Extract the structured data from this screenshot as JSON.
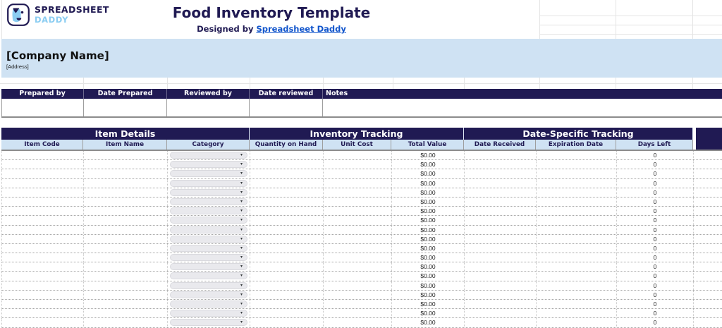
{
  "brand": {
    "logo_icon": "dog-face-icon",
    "name_top": "SPREADSHEET",
    "name_bottom": "DADDY"
  },
  "header": {
    "title": "Food Inventory Template",
    "byline_prefix": "Designed by ",
    "byline_link": "Spreadsheet Daddy"
  },
  "company": {
    "name": "[Company Name]",
    "address": "[Address]"
  },
  "meta_table": {
    "headers": [
      "Prepared by",
      "Date Prepared",
      "Reviewed by",
      "Date reviewed",
      "Notes"
    ]
  },
  "inventory_table": {
    "group_headers": [
      "Item Details",
      "Inventory Tracking",
      "Date-Specific Tracking"
    ],
    "column_headers": [
      "Item Code",
      "Item Name",
      "Category",
      "Quantity on Hand",
      "Unit Cost",
      "Total Value",
      "Date Received",
      "Expiration Date",
      "Days Left"
    ],
    "row_count": 20,
    "row_defaults": {
      "item_code": "",
      "item_name": "",
      "category": "",
      "quantity_on_hand": "",
      "unit_cost": "",
      "total_value": "$0.00",
      "date_received": "",
      "expiration_date": "",
      "days_left": "0"
    },
    "category_dropdown_icon": "chevron-down-icon"
  },
  "colors": {
    "navy": "#201a53",
    "header_blue": "#cfe2f3",
    "link_blue": "#1155cc",
    "logo_light_blue": "#8bcdf2",
    "dropdown_gray": "#e9e9ed"
  }
}
